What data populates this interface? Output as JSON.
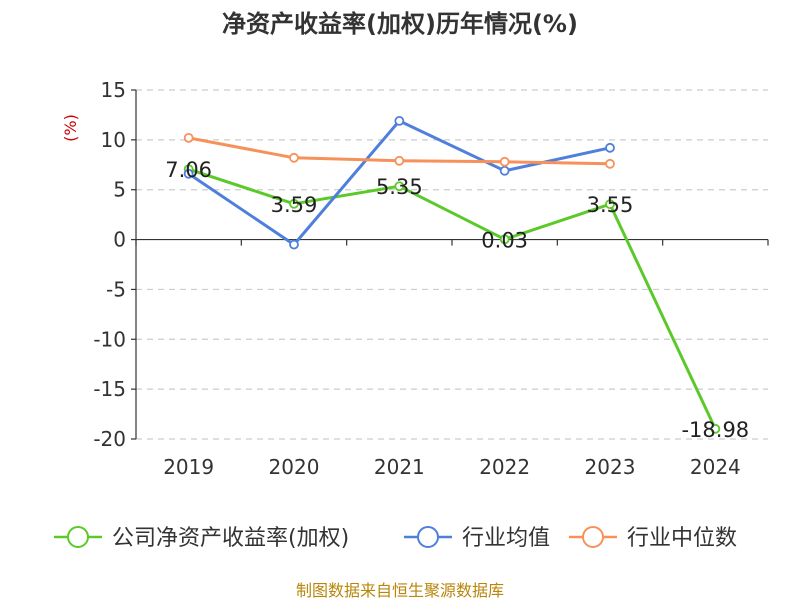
{
  "chart_data": {
    "type": "line",
    "title": "净资产收益率(加权)历年情况(%)",
    "ylabel": "(%)",
    "xlabel": "",
    "categories": [
      "2019",
      "2020",
      "2021",
      "2022",
      "2023",
      "2024"
    ],
    "ylim": [
      -20,
      15
    ],
    "yticks": [
      15,
      10,
      5,
      0,
      -5,
      -10,
      -15,
      -20
    ],
    "grid": true,
    "legend_position": "bottom",
    "series": [
      {
        "name": "公司净资产收益率(加权)",
        "color": "#5cc92a",
        "values": [
          7.06,
          3.59,
          5.35,
          0.03,
          3.55,
          -18.98
        ],
        "labels": [
          "7.06",
          "3.59",
          "5.35",
          "0.03",
          "3.55",
          "-18.98"
        ]
      },
      {
        "name": "行业均值",
        "color": "#4e7fdc",
        "values": [
          6.6,
          -0.5,
          11.9,
          6.9,
          9.2,
          null
        ]
      },
      {
        "name": "行业中位数",
        "color": "#f7915a",
        "values": [
          10.2,
          8.2,
          7.9,
          7.8,
          7.6,
          null
        ]
      }
    ]
  },
  "footer": {
    "source": "制图数据来自恒生聚源数据库"
  }
}
